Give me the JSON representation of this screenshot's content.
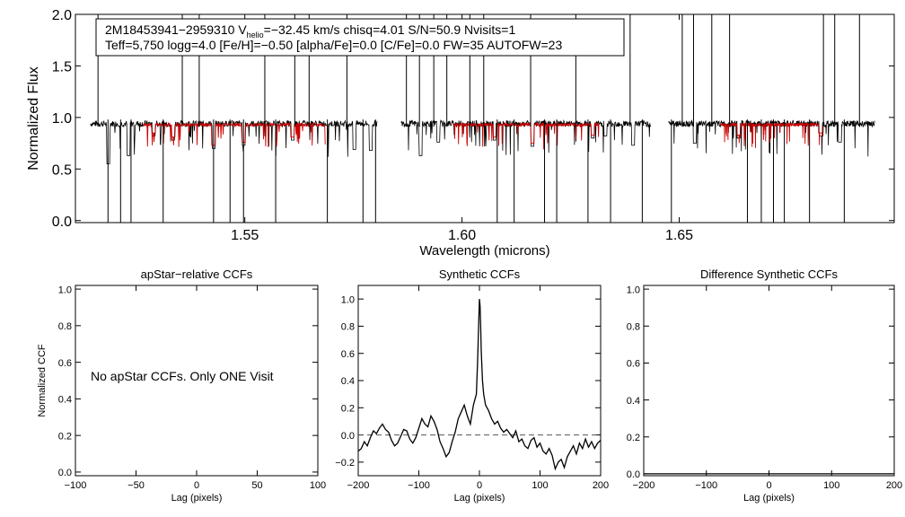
{
  "colors": {
    "axis": "#000000",
    "observed": "#000000",
    "model": "#cc0000",
    "zero_line": "#555555"
  },
  "chart_data": [
    {
      "id": "spectrum",
      "type": "line",
      "title": "",
      "xlabel": "Wavelength (microns)",
      "ylabel": "Normalized Flux",
      "xlim": [
        1.511,
        1.6995
      ],
      "ylim": [
        -0.02,
        2.0
      ],
      "xticks": [
        1.55,
        1.6,
        1.65
      ],
      "xtick_labels": [
        "1.55",
        "1.60",
        "1.65"
      ],
      "yticks": [
        0.0,
        0.5,
        1.0,
        1.5,
        2.0
      ],
      "ytick_labels": [
        "0.0",
        "0.5",
        "1.0",
        "1.5",
        "2.0"
      ],
      "chips": [
        [
          1.5145,
          1.5805
        ],
        [
          1.586,
          1.6435
        ],
        [
          1.6475,
          1.695
        ]
      ],
      "baseline": 0.94,
      "noise": 0.03,
      "spikes": [
        1.5162,
        1.5185,
        1.5214,
        1.5238,
        1.5312,
        1.5356,
        1.5395,
        1.5428,
        1.5466,
        1.5497,
        1.5546,
        1.5571,
        1.5615,
        1.5648,
        1.569,
        1.5735,
        1.5772,
        1.5801,
        1.5872,
        1.5902,
        1.5935,
        1.5965,
        1.6018,
        1.605,
        1.6081,
        1.612,
        1.6158,
        1.619,
        1.6218,
        1.6262,
        1.629,
        1.6342,
        1.6387,
        1.6415,
        1.6482,
        1.6507,
        1.6533,
        1.6575,
        1.6616,
        1.6657,
        1.6689,
        1.6717,
        1.6742,
        1.68,
        1.6832,
        1.6858,
        1.688,
        1.6915
      ],
      "dips": [
        [
          1.5186,
          0.55
        ],
        [
          1.5232,
          0.63
        ],
        [
          1.529,
          0.82
        ],
        [
          1.5335,
          0.78
        ],
        [
          1.5428,
          0.7
        ],
        [
          1.5497,
          0.73
        ],
        [
          1.561,
          0.78
        ],
        [
          1.5752,
          0.69
        ],
        [
          1.579,
          0.68
        ],
        [
          1.5905,
          0.63
        ],
        [
          1.5945,
          0.76
        ],
        [
          1.6075,
          0.78
        ],
        [
          1.6162,
          0.72
        ],
        [
          1.6301,
          0.8
        ],
        [
          1.633,
          0.82
        ],
        [
          1.6394,
          0.73
        ],
        [
          1.6536,
          0.75
        ],
        [
          1.6637,
          0.8
        ],
        [
          1.6825,
          0.82
        ],
        [
          1.687,
          0.76
        ]
      ],
      "annotation": {
        "object": "2M18453941−2959310",
        "v_prefix": "V",
        "v_sub": "helio",
        "v_value": "=−32.45 km/s",
        "chisq": "chisq=4.01",
        "snr": "S/N=50.9",
        "nvisits": "Nvisits=1",
        "params": "Teff=5,750 logg=4.0 [Fe/H]=−0.50 [alpha/Fe]=0.0 [C/Fe]=0.0 FW=35 AUTOFW=23"
      }
    },
    {
      "id": "apstar_ccf",
      "type": "line",
      "title": "apStar−relative CCFs",
      "xlabel": "Lag (pixels)",
      "ylabel": "Normalized CCF",
      "xlim": [
        -100,
        100
      ],
      "ylim": [
        -0.02,
        1.02
      ],
      "xticks": [
        -100,
        -50,
        0,
        50,
        100
      ],
      "xtick_labels": [
        "−100",
        "−50",
        "0",
        "50",
        "100"
      ],
      "yticks": [
        0.0,
        0.2,
        0.4,
        0.6,
        0.8,
        1.0
      ],
      "ytick_labels": [
        "0.0",
        "0.2",
        "0.4",
        "0.6",
        "0.8",
        "1.0"
      ],
      "message": "No apStar CCFs.  Only ONE Visit",
      "series": []
    },
    {
      "id": "synthetic_ccf",
      "type": "line",
      "title": "Synthetic CCFs",
      "xlabel": "Lag (pixels)",
      "ylabel": "",
      "xlim": [
        -200,
        200
      ],
      "ylim": [
        -0.3,
        1.1
      ],
      "xticks": [
        -200,
        -100,
        0,
        100,
        200
      ],
      "xtick_labels": [
        "−200",
        "−100",
        "0",
        "100",
        "200"
      ],
      "yticks": [
        -0.2,
        0.0,
        0.2,
        0.4,
        0.6,
        0.8,
        1.0
      ],
      "ytick_labels": [
        "−0.2",
        "0.0",
        "0.2",
        "0.4",
        "0.6",
        "0.8",
        "1.0"
      ],
      "zero_line": 0.0,
      "series": [
        {
          "name": "CCF",
          "x": [
            -200,
            -195,
            -190,
            -185,
            -180,
            -175,
            -170,
            -165,
            -160,
            -155,
            -150,
            -145,
            -140,
            -135,
            -130,
            -125,
            -120,
            -115,
            -110,
            -105,
            -100,
            -95,
            -90,
            -85,
            -80,
            -75,
            -70,
            -65,
            -60,
            -55,
            -50,
            -45,
            -40,
            -35,
            -30,
            -25,
            -20,
            -15,
            -10,
            -5,
            -3,
            -1,
            0,
            1,
            2,
            3,
            5,
            7,
            10,
            15,
            20,
            25,
            30,
            35,
            40,
            45,
            50,
            55,
            60,
            65,
            70,
            75,
            80,
            85,
            90,
            95,
            100,
            105,
            110,
            115,
            120,
            125,
            130,
            135,
            140,
            145,
            150,
            155,
            160,
            165,
            170,
            175,
            180,
            185,
            190,
            195,
            200
          ],
          "y": [
            -0.12,
            -0.1,
            -0.05,
            -0.08,
            -0.02,
            0.03,
            0.01,
            0.05,
            0.08,
            0.04,
            0.02,
            -0.04,
            -0.08,
            -0.06,
            -0.01,
            0.04,
            0.03,
            -0.03,
            -0.06,
            -0.02,
            0.05,
            0.12,
            0.08,
            0.06,
            0.14,
            0.1,
            0.04,
            -0.05,
            -0.1,
            -0.16,
            -0.13,
            -0.05,
            0.02,
            0.12,
            0.17,
            0.22,
            0.14,
            0.08,
            0.22,
            0.3,
            0.55,
            0.85,
            1.0,
            0.95,
            0.8,
            0.62,
            0.4,
            0.3,
            0.22,
            0.18,
            0.12,
            0.08,
            0.1,
            0.05,
            0.02,
            0.04,
            0.01,
            -0.02,
            0.03,
            -0.05,
            -0.03,
            -0.08,
            -0.1,
            -0.04,
            -0.02,
            -0.09,
            -0.06,
            -0.12,
            -0.14,
            -0.1,
            -0.15,
            -0.25,
            -0.2,
            -0.18,
            -0.24,
            -0.16,
            -0.12,
            -0.08,
            -0.14,
            -0.06,
            -0.1,
            -0.03,
            -0.09,
            -0.05,
            -0.1,
            -0.06,
            -0.04
          ]
        }
      ]
    },
    {
      "id": "difference_ccf",
      "type": "line",
      "title": "Difference Synthetic CCFs",
      "xlabel": "Lag (pixels)",
      "ylabel": "",
      "xlim": [
        -200,
        200
      ],
      "ylim": [
        -0.01,
        1.02
      ],
      "xticks": [
        -200,
        -100,
        0,
        100,
        200
      ],
      "xtick_labels": [
        "−200",
        "−100",
        "0",
        "100",
        "200"
      ],
      "yticks": [
        0.0,
        0.2,
        0.4,
        0.6,
        0.8,
        1.0
      ],
      "ytick_labels": [
        "0.0",
        "0.2",
        "0.4",
        "0.6",
        "0.8",
        "1.0"
      ],
      "series": [
        {
          "name": "difference",
          "x": [
            -200,
            200
          ],
          "y": [
            0.0,
            0.0
          ]
        }
      ]
    }
  ]
}
